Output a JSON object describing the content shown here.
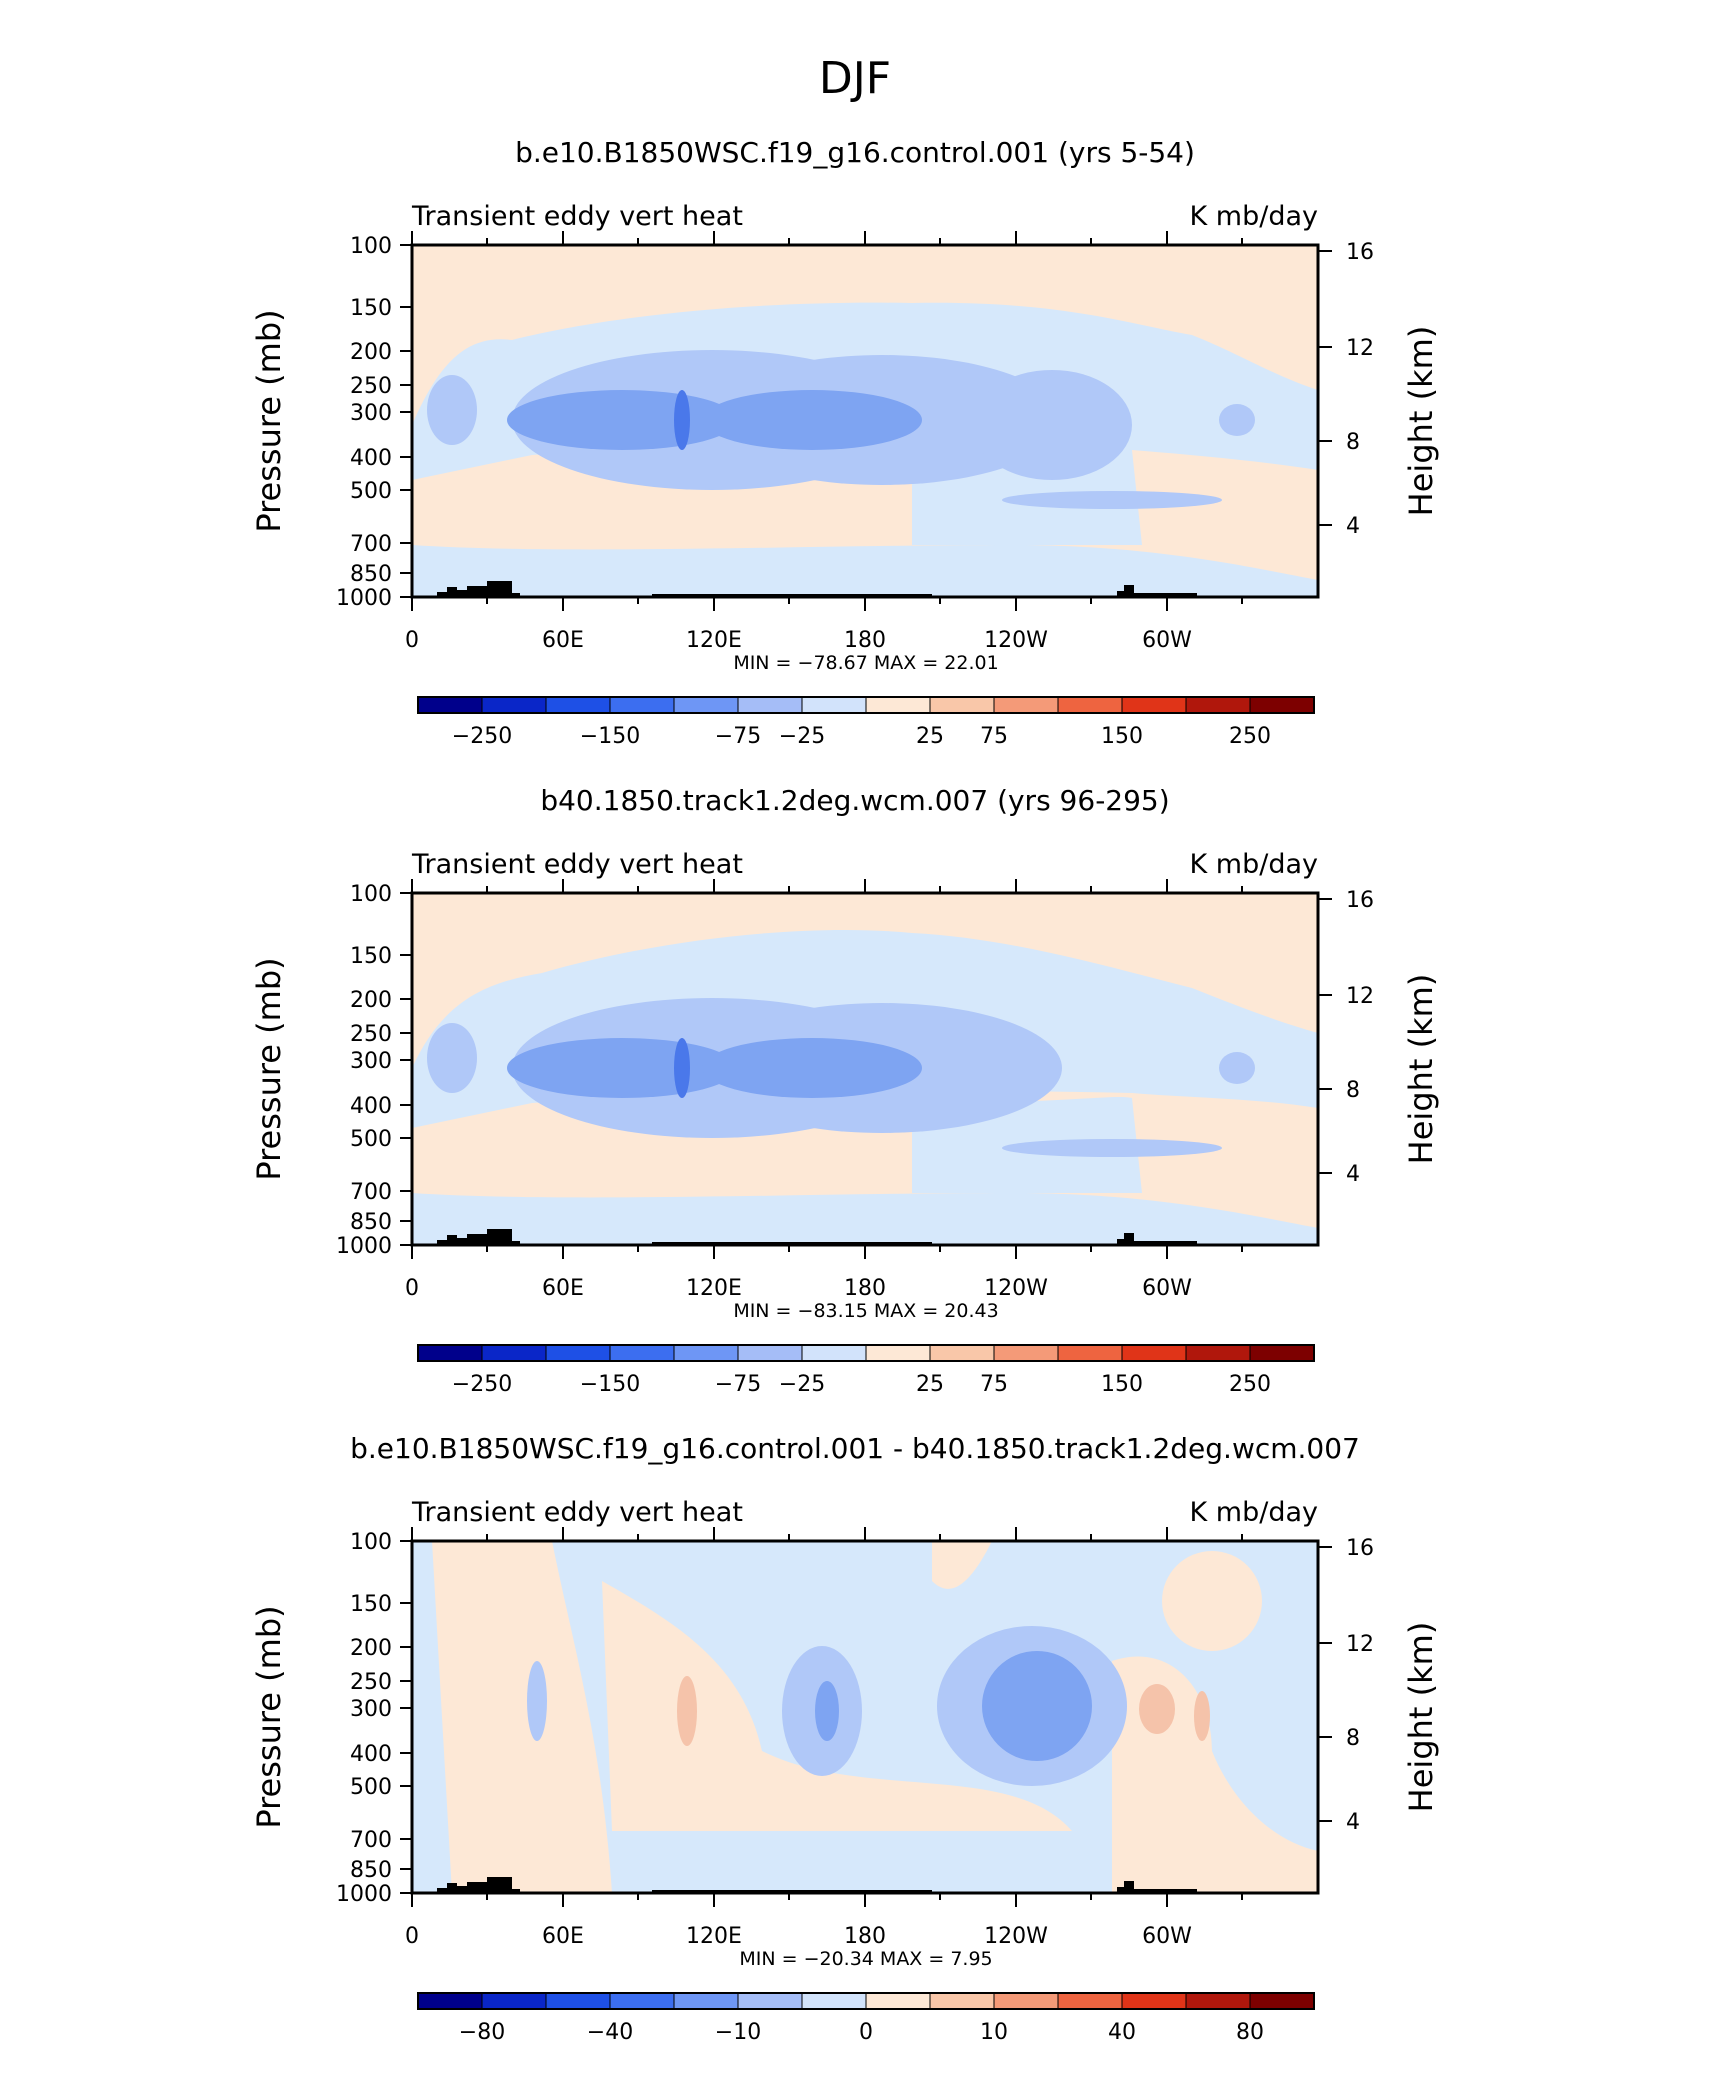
{
  "figure_title": "DJF",
  "chart_data": [
    {
      "type": "heatmap",
      "title": "b.e10.B1850WSC.f19_g16.control.001 (yrs 5-54)",
      "left_subtitle": "Transient eddy vert heat",
      "right_subtitle": "K mb/day",
      "ylabel": "Pressure (mb)",
      "ylabel_right": "Height (km)",
      "yticks": [
        "100",
        "150",
        "200",
        "250",
        "300",
        "400",
        "500",
        "700",
        "850",
        "1000"
      ],
      "yticks_right": [
        "16",
        "12",
        "8",
        "4"
      ],
      "xticks": [
        "0",
        "60E",
        "120E",
        "180",
        "120W",
        "60W"
      ],
      "minmax_text": "MIN = −78.67   MAX =   22.01",
      "colorbar_labels": [
        "−250",
        "−150",
        "−75",
        "−25",
        "25",
        "75",
        "150",
        "250"
      ],
      "colorbar_levels": [
        -250,
        -150,
        -75,
        -25,
        25,
        75,
        150,
        250
      ]
    },
    {
      "type": "heatmap",
      "title": "b40.1850.track1.2deg.wcm.007 (yrs 96-295)",
      "left_subtitle": "Transient eddy vert heat",
      "right_subtitle": "K mb/day",
      "ylabel": "Pressure (mb)",
      "ylabel_right": "Height (km)",
      "yticks": [
        "100",
        "150",
        "200",
        "250",
        "300",
        "400",
        "500",
        "700",
        "850",
        "1000"
      ],
      "yticks_right": [
        "16",
        "12",
        "8",
        "4"
      ],
      "xticks": [
        "0",
        "60E",
        "120E",
        "180",
        "120W",
        "60W"
      ],
      "minmax_text": "MIN = −83.15   MAX =   20.43",
      "colorbar_labels": [
        "−250",
        "−150",
        "−75",
        "−25",
        "25",
        "75",
        "150",
        "250"
      ],
      "colorbar_levels": [
        -250,
        -150,
        -75,
        -25,
        25,
        75,
        150,
        250
      ]
    },
    {
      "type": "heatmap",
      "title": "b.e10.B1850WSC.f19_g16.control.001 - b40.1850.track1.2deg.wcm.007",
      "left_subtitle": "Transient eddy vert heat",
      "right_subtitle": "K mb/day",
      "ylabel": "Pressure (mb)",
      "ylabel_right": "Height (km)",
      "yticks": [
        "100",
        "150",
        "200",
        "250",
        "300",
        "400",
        "500",
        "700",
        "850",
        "1000"
      ],
      "yticks_right": [
        "16",
        "12",
        "8",
        "4"
      ],
      "xticks": [
        "0",
        "60E",
        "120E",
        "180",
        "120W",
        "60W"
      ],
      "minmax_text": "MIN = −20.34   MAX =    7.95",
      "colorbar_labels": [
        "−80",
        "−40",
        "−10",
        "0",
        "10",
        "40",
        "80"
      ],
      "colorbar_levels": [
        -80,
        -40,
        -10,
        0,
        10,
        40,
        80
      ]
    }
  ],
  "colors": {
    "colorbar": [
      "#00008b",
      "#0a26c8",
      "#1e50e6",
      "#3c6ef0",
      "#6e96f5",
      "#a5bdf7",
      "#d2e3fb",
      "#fde8d6",
      "#f9c7a9",
      "#f49a78",
      "#ee6440",
      "#e03418",
      "#b0170c",
      "#7d0000"
    ],
    "pos_light": "#fde8d6",
    "neg_light": "#d6e8fb",
    "neg_mid": "#b0c8f8",
    "neg_strong": "#7ea4f2",
    "neg_deep": "#4a78ea",
    "pos_mid": "#f5c3aa",
    "pos_strong": "#f0a080",
    "topo": "#000000"
  }
}
